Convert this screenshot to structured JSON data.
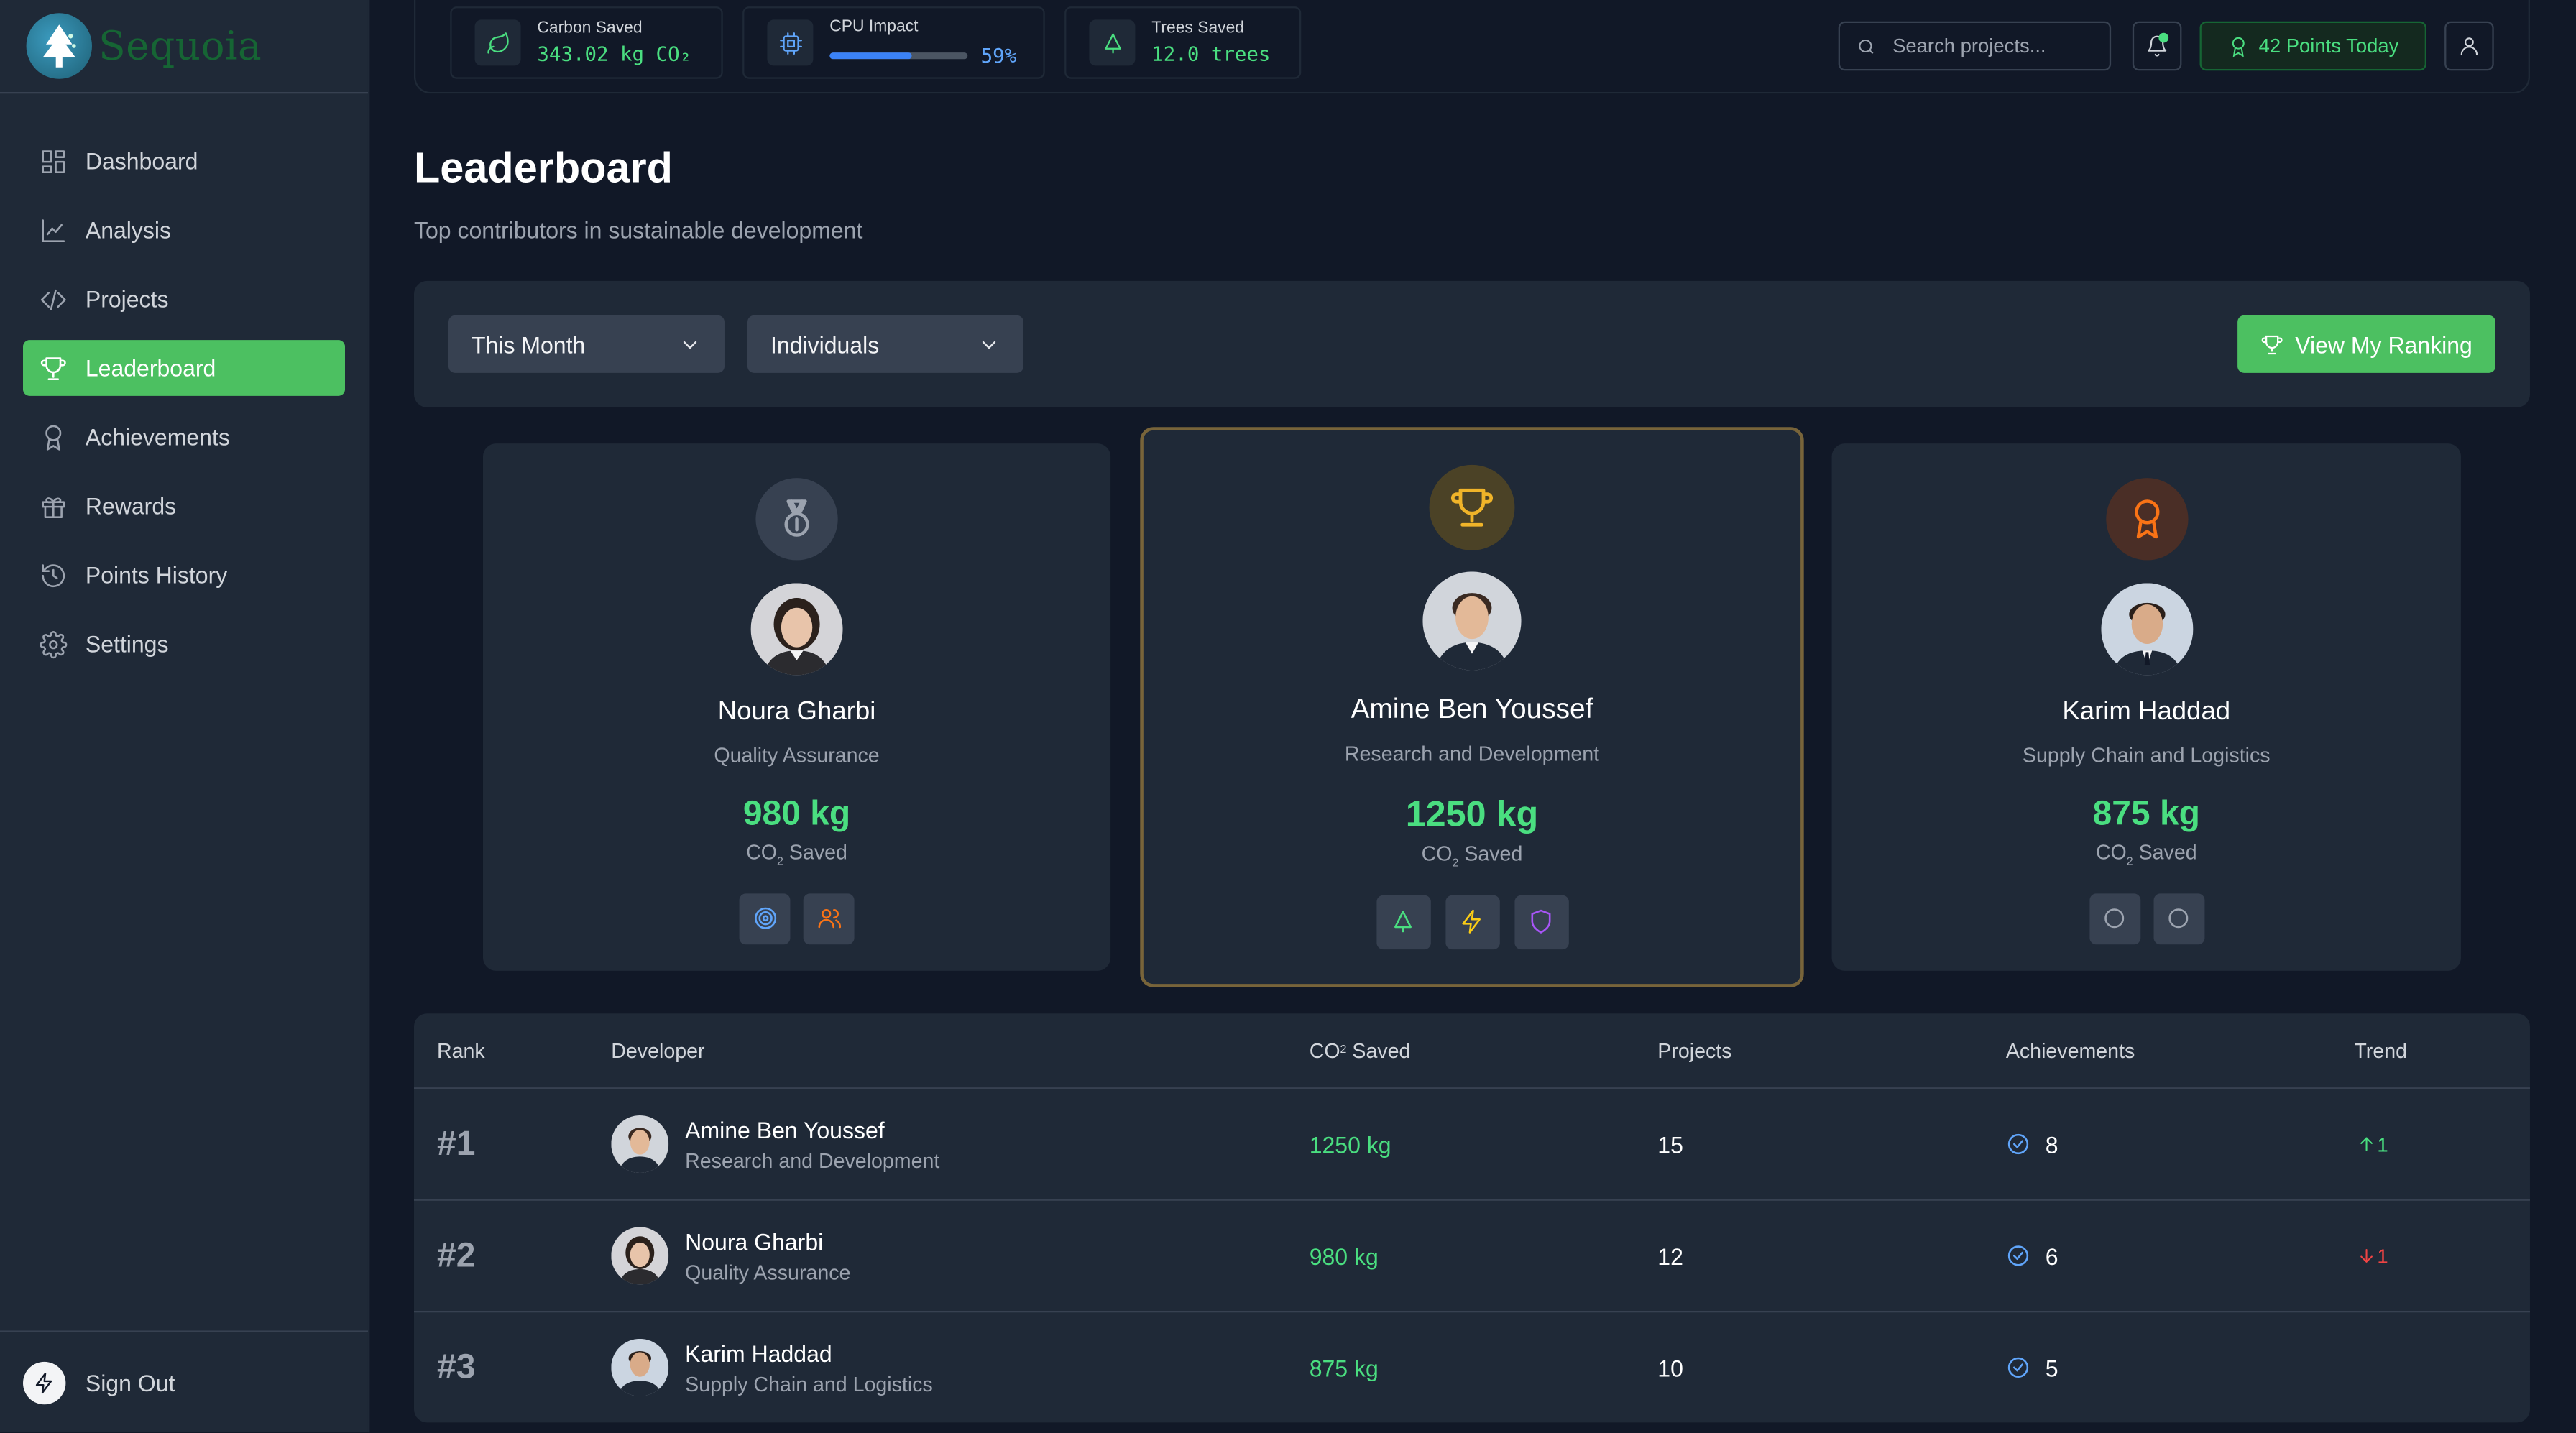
{
  "brand": {
    "name": "Sequoia"
  },
  "sidebar": {
    "items": [
      {
        "label": "Dashboard",
        "icon": "dashboard-icon",
        "active": false
      },
      {
        "label": "Analysis",
        "icon": "chart-line-icon",
        "active": false
      },
      {
        "label": "Projects",
        "icon": "code-icon",
        "active": false
      },
      {
        "label": "Leaderboard",
        "icon": "trophy-icon",
        "active": true
      },
      {
        "label": "Achievements",
        "icon": "award-icon",
        "active": false
      },
      {
        "label": "Rewards",
        "icon": "gift-icon",
        "active": false
      },
      {
        "label": "Points History",
        "icon": "history-icon",
        "active": false
      },
      {
        "label": "Settings",
        "icon": "gear-icon",
        "active": false
      }
    ],
    "signout_label": "Sign Out"
  },
  "topbar": {
    "carbon": {
      "label": "Carbon Saved",
      "value": "343.02 kg CO₂"
    },
    "cpu": {
      "label": "CPU Impact",
      "value": "59%",
      "percent": 59
    },
    "trees": {
      "label": "Trees Saved",
      "value": "12.0 trees"
    },
    "search_placeholder": "Search projects...",
    "points_label": "42 Points Today"
  },
  "page": {
    "title": "Leaderboard",
    "subtitle": "Top contributors in sustainable development"
  },
  "filters": {
    "period": "This Month",
    "scope": "Individuals",
    "ranking_button": "View My Ranking"
  },
  "podium": [
    {
      "place": 2,
      "name": "Noura Gharbi",
      "dept": "Quality Assurance",
      "value": "980 kg",
      "unit_co": "CO",
      "unit_sub": "2",
      "unit_rest": " Saved"
    },
    {
      "place": 1,
      "name": "Amine Ben Youssef",
      "dept": "Research and Development",
      "value": "1250 kg",
      "unit_co": "CO",
      "unit_sub": "2",
      "unit_rest": " Saved"
    },
    {
      "place": 3,
      "name": "Karim Haddad",
      "dept": "Supply Chain and Logistics",
      "value": "875 kg",
      "unit_co": "CO",
      "unit_sub": "2",
      "unit_rest": " Saved"
    }
  ],
  "table": {
    "headers": {
      "rank": "Rank",
      "developer": "Developer",
      "co2_pre": "CO",
      "co2_sub": "2",
      "co2_post": " Saved",
      "projects": "Projects",
      "achievements": "Achievements",
      "trend": "Trend"
    },
    "rows": [
      {
        "rank": "#1",
        "name": "Amine Ben Youssef",
        "dept": "Research and Development",
        "co2": "1250 kg",
        "projects": "15",
        "achievements": "8",
        "trend": "1",
        "trend_dir": "up"
      },
      {
        "rank": "#2",
        "name": "Noura Gharbi",
        "dept": "Quality Assurance",
        "co2": "980 kg",
        "projects": "12",
        "achievements": "6",
        "trend": "1",
        "trend_dir": "down"
      },
      {
        "rank": "#3",
        "name": "Karim Haddad",
        "dept": "Supply Chain and Logistics",
        "co2": "875 kg",
        "projects": "10",
        "achievements": "5",
        "trend": "",
        "trend_dir": "none"
      }
    ]
  },
  "colors": {
    "accent": "#4cc061",
    "gold": "#f0b429",
    "silver": "#9ca3af",
    "bronze": "#f97316",
    "up": "#4ade80",
    "down": "#ef4444"
  }
}
